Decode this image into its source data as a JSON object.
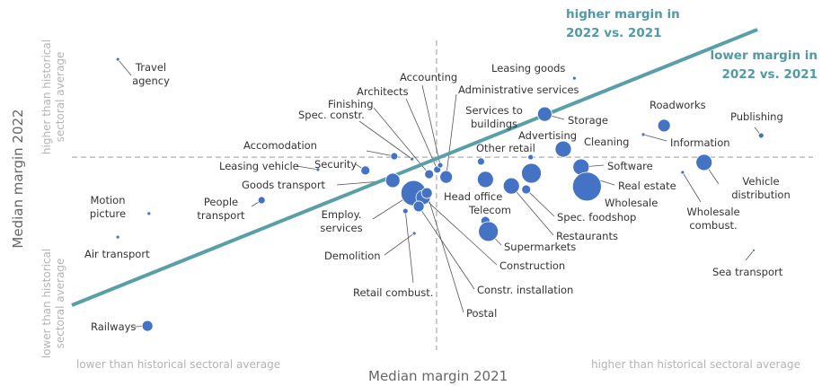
{
  "chart_data": {
    "type": "scatter",
    "x_label": "Median margin 2021",
    "y_label": "Median margin 2022",
    "x_low_label": "lower than historical sectoral average",
    "x_high_label": "higher than historical sectoral average",
    "y_high_label": "higher than historical sectoral average",
    "y_low_label": "lower than historical sectoral average",
    "annotations": [
      "higher margin in 2022 vs.  2021",
      "lower margin in 2022 vs. 2021"
    ],
    "xlim": [
      0,
      100
    ],
    "ylim": [
      0,
      100
    ],
    "reference_lines": {
      "x": 49.2,
      "y": 62.3
    },
    "trend_line": {
      "x": [
        0,
        92.5
      ],
      "y": [
        14.5,
        103.5
      ],
      "color": "#5a9ea8"
    },
    "color": "#4472c4",
    "labels": [
      "Travel agency",
      "Motion picture",
      "Air transport",
      "Railways",
      "People transport",
      "Leasing vehicle",
      "Security",
      "Accomodation",
      "Goods transport",
      "Employ. services",
      "Demolition",
      "Retail combust.",
      "Spec. constr.",
      "Construction",
      "Constr. installation",
      "Postal",
      "Finishing",
      "Architects",
      "Accounting",
      "Administrative services",
      "Head office",
      "Leasing goods",
      "Services to buildings",
      "Telecom",
      "Supermarkets",
      "Storage",
      "Other retail",
      "Advertising",
      "Restaurants",
      "Spec. foodshop",
      "Cleaning",
      "Software",
      "Real estate",
      "Wholesale",
      "Roadworks",
      "Information",
      "Publishing",
      "Vehicle distribution",
      "Wholesale combust.",
      "Sea transport"
    ],
    "x": [
      6.2,
      10.4,
      6.2,
      10.2,
      25.6,
      33.2,
      39.6,
      43.5,
      43.3,
      46.1,
      46.2,
      45.0,
      45.9,
      47.4,
      46.8,
      47.9,
      48.2,
      49.3,
      49.7,
      50.5,
      55.8,
      67.8,
      55.2,
      55.8,
      56.2,
      63.8,
      61.9,
      62.0,
      59.3,
      61.3,
      66.3,
      68.7,
      70.4,
      69.5,
      79.9,
      77.1,
      93.0,
      85.3,
      82.4,
      92.0
    ],
    "y": [
      93.9,
      44.1,
      36.5,
      7.8,
      48.4,
      58.3,
      58.0,
      62.6,
      54.8,
      50.7,
      37.7,
      44.9,
      61.7,
      49.3,
      46.4,
      50.7,
      56.8,
      58.3,
      59.7,
      55.9,
      55.1,
      87.8,
      60.9,
      41.7,
      38.3,
      76.2,
      62.3,
      57.1,
      53.0,
      51.9,
      64.9,
      59.1,
      55.4,
      52.8,
      72.5,
      69.6,
      69.3,
      60.6,
      57.4,
      32.2
    ],
    "sizes": [
      2,
      2,
      2,
      6,
      4,
      2,
      5,
      4,
      8,
      14,
      2,
      3,
      2,
      8,
      6,
      6,
      5,
      4,
      3,
      7,
      9,
      2,
      4,
      5,
      11,
      8,
      3,
      11,
      9,
      5,
      9,
      9,
      5,
      16,
      7,
      2,
      3,
      9,
      2,
      1.5
    ]
  }
}
